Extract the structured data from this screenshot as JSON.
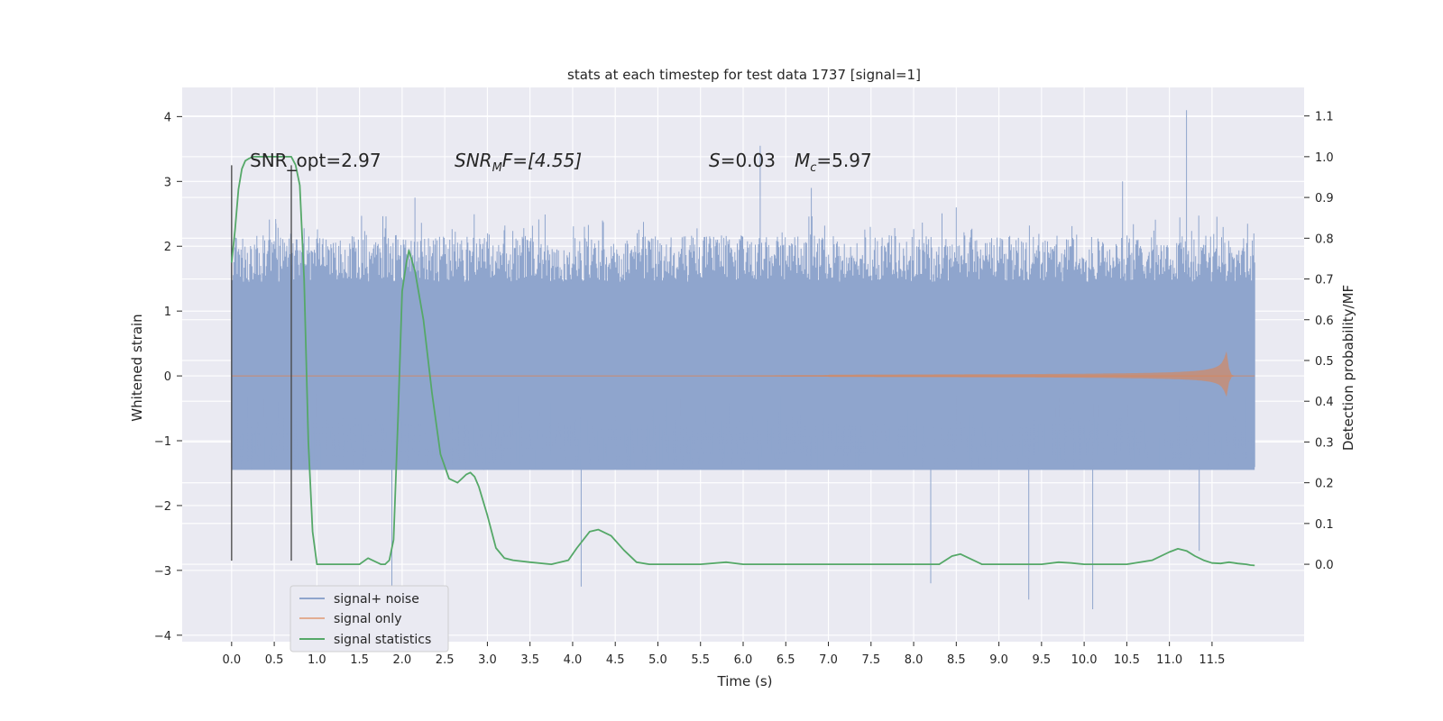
{
  "chart_data": {
    "type": "line",
    "title": "stats at each timestep for test data 1737 [signal=1]",
    "xlabel": "Time (s)",
    "ylabel": "Whitened strain",
    "y2label": "Detection probability/MF",
    "xlim": [
      -0.58,
      12.58
    ],
    "ylim": [
      -4.1,
      4.45
    ],
    "y2lim": [
      -0.19,
      1.17
    ],
    "x_ticks": [
      0.0,
      0.5,
      1.0,
      1.5,
      2.0,
      2.5,
      3.0,
      3.5,
      4.0,
      4.5,
      5.0,
      5.5,
      6.0,
      6.5,
      7.0,
      7.5,
      8.0,
      8.5,
      9.0,
      9.5,
      10.0,
      10.5,
      11.0,
      11.5
    ],
    "x_tick_labels": [
      "0.0",
      "0.5",
      "1.0",
      "1.5",
      "2.0",
      "2.5",
      "3.0",
      "3.5",
      "4.0",
      "4.5",
      "5.0",
      "5.5",
      "6.0",
      "6.5",
      "7.0",
      "7.5",
      "8.0",
      "8.5",
      "9.0",
      "9.5",
      "10.0",
      "10.5",
      "11.0",
      "11.5"
    ],
    "y_ticks": [
      4,
      3,
      2,
      1,
      0,
      -1,
      -2,
      -3,
      -4
    ],
    "y_tick_labels": [
      "4",
      "3",
      "2",
      "1",
      "0",
      "−1",
      "−2",
      "−3",
      "−4"
    ],
    "y2_ticks": [
      1.1,
      1.0,
      0.9,
      0.8,
      0.7,
      0.6,
      0.5,
      0.4,
      0.3,
      0.2,
      0.1,
      0.0
    ],
    "y2_tick_labels": [
      "1.1",
      "1.0",
      "0.9",
      "0.8",
      "0.7",
      "0.6",
      "0.5",
      "0.4",
      "0.3",
      "0.2",
      "0.1",
      "0.0"
    ],
    "grid": true,
    "legend_position": "lower-left",
    "annotations": {
      "snr_opt": "SNR_opt=2.97",
      "snr_mf_base": "SNR",
      "snr_mf_sub": "M",
      "snr_mf_rest": "F=[4.55]",
      "s_label": "S",
      "s_value": "=0.03",
      "mc_label": "M",
      "mc_sub": "c",
      "mc_value": "=5.97"
    },
    "vertical_markers": [
      {
        "x": 0.0,
        "y_range": [
          -2.85,
          3.25
        ]
      },
      {
        "x": 0.7,
        "y_range": [
          -2.85,
          3.25
        ]
      }
    ],
    "series": [
      {
        "name": "signal+ noise",
        "color": "#8fa5cd",
        "kind": "noise",
        "x_range": [
          0.0,
          12.0
        ],
        "band": [
          -1.45,
          1.45
        ],
        "typical_extremes": [
          2.3,
          -2.4
        ],
        "peaks": [
          [
            0.52,
            2.35
          ],
          [
            1.88,
            -3.3
          ],
          [
            2.15,
            2.75
          ],
          [
            4.1,
            -3.25
          ],
          [
            6.2,
            3.55
          ],
          [
            6.8,
            2.9
          ],
          [
            8.2,
            -3.2
          ],
          [
            8.5,
            2.6
          ],
          [
            9.35,
            -3.45
          ],
          [
            10.1,
            -3.6
          ],
          [
            11.2,
            4.1
          ],
          [
            11.35,
            -2.7
          ],
          [
            10.45,
            3.0
          ]
        ]
      },
      {
        "name": "signal only",
        "color": "#dd8452",
        "kind": "chirp",
        "x_range": [
          0.0,
          12.0
        ],
        "merger_x": 11.68,
        "peak_amplitude": 0.38
      },
      {
        "name": "signal statistics",
        "color": "#55a868",
        "kind": "line",
        "axis": "y2",
        "x": [
          0.0,
          0.04,
          0.08,
          0.12,
          0.16,
          0.2,
          0.25,
          0.3,
          0.4,
          0.5,
          0.6,
          0.65,
          0.7,
          0.75,
          0.8,
          0.85,
          0.9,
          0.95,
          1.0,
          1.2,
          1.4,
          1.5,
          1.6,
          1.7,
          1.75,
          1.8,
          1.85,
          1.9,
          1.95,
          2.0,
          2.05,
          2.08,
          2.15,
          2.25,
          2.35,
          2.45,
          2.55,
          2.65,
          2.7,
          2.75,
          2.8,
          2.85,
          2.9,
          3.0,
          3.1,
          3.2,
          3.3,
          3.5,
          3.75,
          3.95,
          4.05,
          4.2,
          4.3,
          4.45,
          4.6,
          4.75,
          4.9,
          5.2,
          5.5,
          5.8,
          6.0,
          6.5,
          7.0,
          7.5,
          8.0,
          8.3,
          8.45,
          8.55,
          8.65,
          8.8,
          9.0,
          9.5,
          9.7,
          9.85,
          10.0,
          10.5,
          10.8,
          11.0,
          11.1,
          11.2,
          11.3,
          11.4,
          11.5,
          11.6,
          11.7,
          11.8,
          11.9,
          11.95,
          12.0
        ],
        "y": [
          0.74,
          0.82,
          0.92,
          0.97,
          0.99,
          0.995,
          1.0,
          1.0,
          1.0,
          1.0,
          1.0,
          1.0,
          1.0,
          0.98,
          0.93,
          0.7,
          0.3,
          0.08,
          0.0,
          0.0,
          0.0,
          0.0,
          0.015,
          0.005,
          0.0,
          0.0,
          0.01,
          0.06,
          0.35,
          0.67,
          0.74,
          0.77,
          0.72,
          0.6,
          0.42,
          0.27,
          0.21,
          0.2,
          0.21,
          0.22,
          0.225,
          0.215,
          0.19,
          0.12,
          0.04,
          0.015,
          0.01,
          0.005,
          0.0,
          0.01,
          0.04,
          0.08,
          0.085,
          0.07,
          0.035,
          0.005,
          0.0,
          0.0,
          0.0,
          0.005,
          0.0,
          0.0,
          0.0,
          0.0,
          0.0,
          0.0,
          0.02,
          0.025,
          0.015,
          0.0,
          0.0,
          0.0,
          0.005,
          0.003,
          0.0,
          0.0,
          0.01,
          0.03,
          0.038,
          0.033,
          0.02,
          0.01,
          0.003,
          0.002,
          0.005,
          0.002,
          0.0,
          -0.002,
          -0.003
        ]
      }
    ]
  }
}
